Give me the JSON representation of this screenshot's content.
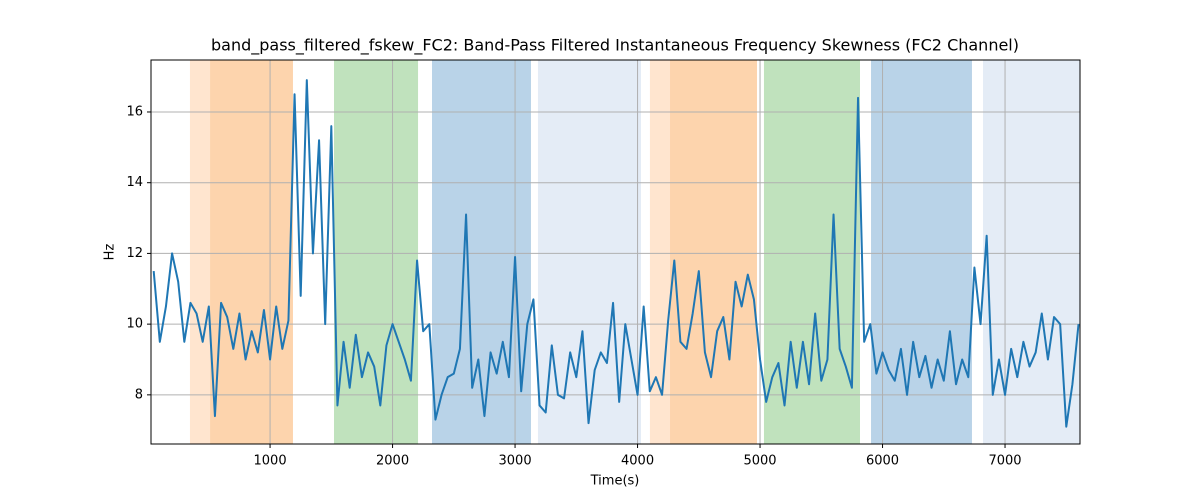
{
  "chart_data": {
    "type": "line",
    "title": "band_pass_filtered_fskew_FC2: Band-Pass Filtered Instantaneous Frequency Skewness (FC2 Channel)",
    "x_label": "Time(s)",
    "y_label": "Hz",
    "xlim": [
      28,
      7612
    ],
    "ylim": [
      6.61,
      17.47
    ],
    "xticks": [
      1000,
      2000,
      3000,
      4000,
      5000,
      6000,
      7000
    ],
    "yticks": [
      8,
      10,
      12,
      14,
      16
    ],
    "grid": true,
    "spans": [
      {
        "start": 346,
        "end": 510,
        "color": "#ffe5cf"
      },
      {
        "start": 510,
        "end": 1187,
        "color": "#fdd4ad"
      },
      {
        "start": 1522,
        "end": 2208,
        "color": "#c0e2bd"
      },
      {
        "start": 2322,
        "end": 3130,
        "color": "#b9d3e8"
      },
      {
        "start": 3187,
        "end": 4028,
        "color": "#e4ecf6"
      },
      {
        "start": 4101,
        "end": 4265,
        "color": "#ffe5cf"
      },
      {
        "start": 4265,
        "end": 4975,
        "color": "#fdd4ad"
      },
      {
        "start": 5032,
        "end": 5816,
        "color": "#c0e2bd"
      },
      {
        "start": 5906,
        "end": 6730,
        "color": "#b9d3e8"
      },
      {
        "start": 6820,
        "end": 7612,
        "color": "#e4ecf6"
      }
    ],
    "x": [
      50,
      100,
      150,
      200,
      250,
      300,
      350,
      400,
      450,
      500,
      550,
      600,
      650,
      700,
      750,
      800,
      850,
      900,
      950,
      1000,
      1050,
      1100,
      1150,
      1200,
      1250,
      1300,
      1350,
      1400,
      1450,
      1500,
      1550,
      1600,
      1650,
      1700,
      1750,
      1800,
      1850,
      1900,
      1950,
      2000,
      2050,
      2100,
      2150,
      2200,
      2250,
      2300,
      2350,
      2400,
      2450,
      2500,
      2550,
      2600,
      2650,
      2700,
      2750,
      2800,
      2850,
      2900,
      2950,
      3000,
      3050,
      3100,
      3150,
      3200,
      3250,
      3300,
      3350,
      3400,
      3450,
      3500,
      3550,
      3600,
      3650,
      3700,
      3750,
      3800,
      3850,
      3900,
      3950,
      4000,
      4050,
      4100,
      4150,
      4200,
      4250,
      4300,
      4350,
      4400,
      4450,
      4500,
      4550,
      4600,
      4650,
      4700,
      4750,
      4800,
      4850,
      4900,
      4950,
      5000,
      5050,
      5100,
      5150,
      5200,
      5250,
      5300,
      5350,
      5400,
      5450,
      5500,
      5550,
      5600,
      5650,
      5700,
      5750,
      5800,
      5850,
      5900,
      5950,
      6000,
      6050,
      6100,
      6150,
      6200,
      6250,
      6300,
      6350,
      6400,
      6450,
      6500,
      6550,
      6600,
      6650,
      6700,
      6750,
      6800,
      6850,
      6900,
      6950,
      7000,
      7050,
      7100,
      7150,
      7200,
      7250,
      7300,
      7350,
      7400,
      7450,
      7500,
      7550,
      7600
    ],
    "series": [
      {
        "name": "band_pass_filtered_fskew_FC2",
        "color": "#1f77b4",
        "values": [
          11.5,
          9.5,
          10.5,
          12.0,
          11.2,
          9.5,
          10.6,
          10.3,
          9.5,
          10.5,
          7.4,
          10.6,
          10.2,
          9.3,
          10.3,
          9.0,
          9.8,
          9.2,
          10.4,
          9.0,
          10.5,
          9.3,
          10.1,
          16.5,
          10.8,
          16.9,
          12.0,
          15.2,
          10.0,
          15.6,
          7.7,
          9.5,
          8.2,
          9.7,
          8.5,
          9.2,
          8.8,
          7.7,
          9.4,
          10.0,
          9.5,
          9.0,
          8.4,
          11.8,
          9.8,
          10.0,
          7.3,
          8.0,
          8.5,
          8.6,
          9.3,
          13.1,
          8.2,
          9.0,
          7.4,
          9.2,
          8.6,
          9.5,
          8.5,
          11.9,
          8.1,
          10.0,
          10.7,
          7.7,
          7.5,
          9.4,
          8.0,
          7.9,
          9.2,
          8.5,
          9.8,
          7.2,
          8.7,
          9.2,
          8.9,
          10.6,
          7.8,
          10.0,
          9.0,
          8.0,
          10.5,
          8.1,
          8.5,
          8.0,
          10.1,
          11.8,
          9.5,
          9.3,
          10.3,
          11.5,
          9.2,
          8.5,
          9.8,
          10.2,
          9.0,
          11.2,
          10.5,
          11.4,
          10.7,
          9.0,
          7.8,
          8.5,
          8.9,
          7.7,
          9.5,
          8.2,
          9.5,
          8.3,
          10.3,
          8.4,
          9.0,
          13.1,
          9.3,
          8.8,
          8.2,
          16.4,
          9.5,
          10.0,
          8.6,
          9.2,
          8.7,
          8.4,
          9.3,
          8.0,
          9.5,
          8.5,
          9.1,
          8.2,
          9.0,
          8.4,
          9.8,
          8.3,
          9.0,
          8.5,
          11.6,
          10.0,
          12.5,
          8.0,
          9.0,
          8.0,
          9.3,
          8.5,
          9.5,
          8.8,
          9.2,
          10.3,
          9.0,
          10.2,
          10.0,
          7.1,
          8.3,
          10.0
        ]
      }
    ]
  }
}
